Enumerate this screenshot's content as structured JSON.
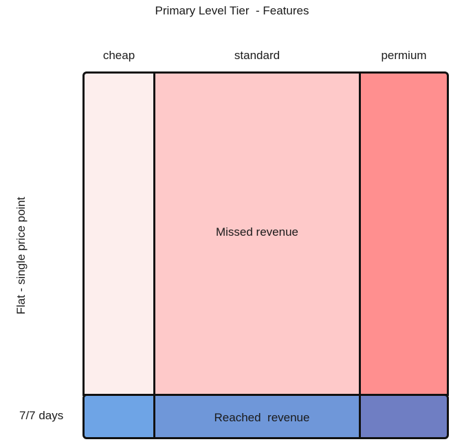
{
  "title": "Primary Level Tier  - Features",
  "columns": [
    {
      "label": "cheap"
    },
    {
      "label": "standard"
    },
    {
      "label": "permium"
    }
  ],
  "side_label": "Flat - single price point",
  "row_label": "7/7 days",
  "missed_revenue_label": "Missed revenue",
  "reached_revenue_label": "Reached  revenue",
  "colors": {
    "cheap_top": "#fdeeed",
    "standard_top": "#fec9c9",
    "premium_top": "#ff8f8f",
    "cheap_bottom": "#6ea4e6",
    "standard_bottom": "#6f97d9",
    "premium_bottom": "#6f7ec3",
    "border": "#111111"
  }
}
